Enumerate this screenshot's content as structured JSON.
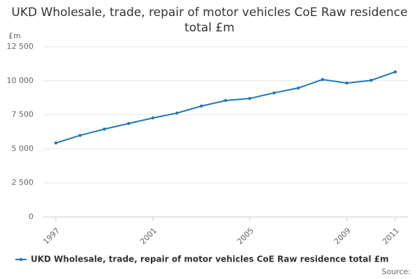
{
  "chart_data": {
    "type": "line",
    "title": "UKD Wholesale, trade, repair of motor vehicles CoE Raw residence total £m",
    "y_axis_label": "£m",
    "source": "Source:",
    "x": [
      1997,
      1998,
      1999,
      2000,
      2001,
      2002,
      2003,
      2004,
      2005,
      2006,
      2007,
      2008,
      2009,
      2010,
      2011
    ],
    "series": [
      {
        "name": "UKD Wholesale, trade, repair of motor vehicles CoE Raw residence total £m",
        "color": "#1f77b4",
        "values": [
          5430,
          5990,
          6450,
          6860,
          7270,
          7630,
          8140,
          8550,
          8700,
          9110,
          9470,
          10090,
          9830,
          10030,
          10650
        ]
      }
    ],
    "xlim": [
      1997,
      2011
    ],
    "xticks": [
      1997,
      2001,
      2005,
      2009,
      2011
    ],
    "ylim": [
      0,
      12500
    ],
    "yticks": [
      0,
      {
        "value": 2500,
        "label": "2 500"
      },
      {
        "value": 5000,
        "label": "5 000"
      },
      {
        "value": 7500,
        "label": "7 500"
      },
      {
        "value": 10000,
        "label": "10 000"
      },
      {
        "value": 12500,
        "label": "12 500"
      }
    ],
    "grid": true
  }
}
